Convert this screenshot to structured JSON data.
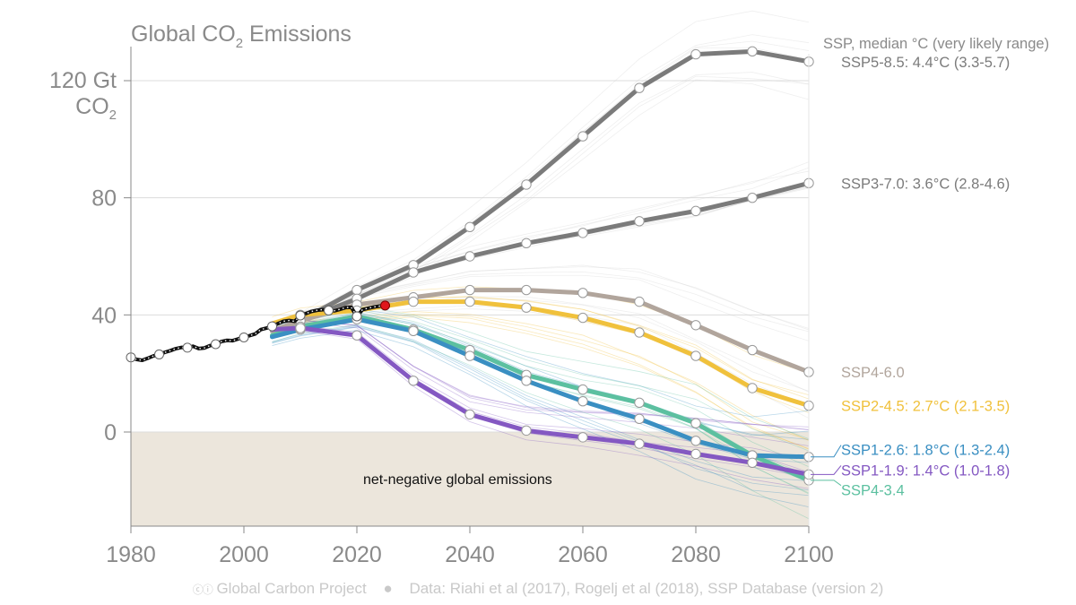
{
  "title": {
    "main": "Global CO",
    "sub": "2",
    "rest": " Emissions"
  },
  "y_unit": {
    "line1": "120 Gt",
    "line2_main": "CO",
    "line2_sub": "2"
  },
  "header_note": "SSP, median °C (very likely range)",
  "region_label": "net-negative global emissions",
  "footer": {
    "cc_icon": "cc-by-icon",
    "org": "Global Carbon Project",
    "separator": "●",
    "source": "Data: Riahi et al (2017), Rogelj et al (2018), SSP Database (version 2)"
  },
  "colors": {
    "gray_dark": "#7b7b7b",
    "taupe": "#b1a59c",
    "yellow": "#f0c13c",
    "teal": "#5cc0a0",
    "blue": "#3a8fc2",
    "purple": "#8458c2",
    "historical": "#111111",
    "latest": "#e0161b",
    "negative_region": "#ece6dc",
    "scenario_band": "#d2d2d2"
  },
  "chart_data": {
    "type": "line",
    "xlim": [
      1980,
      2100
    ],
    "ylim": [
      -16,
      122
    ],
    "x_ticks": [
      "1980",
      "2000",
      "2020",
      "2040",
      "2060",
      "2080",
      "2100"
    ],
    "y_ticks": [
      "0",
      "40",
      "80"
    ],
    "y_ticks_values": [
      0,
      40,
      80,
      120
    ],
    "grid": true,
    "historical": {
      "x": [
        1980,
        1981,
        1982,
        1983,
        1984,
        1985,
        1986,
        1987,
        1988,
        1989,
        1990,
        1991,
        1992,
        1993,
        1994,
        1995,
        1996,
        1997,
        1998,
        1999,
        2000,
        2001,
        2002,
        2003,
        2004,
        2005,
        2006,
        2007,
        2008,
        2009,
        2010,
        2011,
        2012,
        2013,
        2014,
        2015,
        2016,
        2017,
        2018,
        2019,
        2020,
        2021,
        2022,
        2023,
        2024,
        2025
      ],
      "y": [
        25.5,
        24.8,
        24.5,
        25.2,
        26.0,
        26.5,
        27.2,
        27.8,
        28.5,
        28.9,
        28.8,
        29.3,
        28.5,
        28.7,
        29.5,
        30.0,
        30.9,
        31.3,
        31.2,
        31.8,
        32.3,
        32.9,
        33.5,
        35.0,
        35.5,
        36.1,
        37.0,
        37.8,
        38.1,
        37.8,
        39.8,
        40.5,
        41.2,
        41.6,
        41.8,
        41.5,
        41.4,
        41.9,
        42.5,
        42.6,
        39.5,
        41.8,
        42.3,
        42.7,
        43.0,
        43.2
      ],
      "markers_x": [
        1980,
        1985,
        1990,
        1995,
        2000,
        2005,
        2010,
        2015,
        2020
      ],
      "latest": {
        "x": 2025,
        "y": 43.2
      }
    },
    "series": [
      {
        "name": "SSP5-8.5: 4.4°C (3.3-5.7)",
        "color": "#7b7b7b",
        "x": [
          2005,
          2010,
          2020,
          2030,
          2040,
          2050,
          2060,
          2070,
          2080,
          2090,
          2100
        ],
        "y": [
          34.5,
          38.0,
          48.5,
          57.0,
          70.0,
          84.5,
          101.0,
          117.5,
          129.0,
          130.0,
          126.5
        ]
      },
      {
        "name": "SSP3-7.0: 3.6°C (2.8-4.6)",
        "color": "#7b7b7b",
        "x": [
          2005,
          2010,
          2020,
          2030,
          2040,
          2050,
          2060,
          2070,
          2080,
          2090,
          2100
        ],
        "y": [
          34.5,
          38.0,
          45.5,
          54.5,
          60.0,
          64.5,
          68.0,
          72.0,
          75.5,
          80.0,
          85.0
        ]
      },
      {
        "name": "SSP4-6.0",
        "color": "#b1a59c",
        "x": [
          2005,
          2010,
          2020,
          2030,
          2040,
          2050,
          2060,
          2070,
          2080,
          2090,
          2100
        ],
        "y": [
          34.5,
          38.0,
          43.5,
          46.0,
          48.5,
          48.5,
          47.5,
          44.5,
          36.5,
          28.0,
          20.5
        ]
      },
      {
        "name": "SSP2-4.5: 2.7°C (2.1-3.5)",
        "color": "#f0c13c",
        "x": [
          2005,
          2010,
          2020,
          2030,
          2040,
          2050,
          2060,
          2070,
          2080,
          2090,
          2100
        ],
        "y": [
          37.0,
          40.0,
          41.5,
          44.5,
          44.5,
          42.5,
          39.0,
          34.0,
          26.0,
          15.0,
          9.0
        ]
      },
      {
        "name": "SSP1-2.6: 1.8°C (1.3-2.4)",
        "color": "#3a8fc2",
        "x": [
          2005,
          2010,
          2020,
          2030,
          2040,
          2050,
          2060,
          2070,
          2080,
          2090,
          2100
        ],
        "y": [
          32.5,
          35.0,
          38.5,
          34.5,
          26.0,
          17.5,
          10.5,
          4.5,
          -3.0,
          -8.0,
          -8.5
        ]
      },
      {
        "name": "SSP1-1.9: 1.4°C (1.0-1.8)",
        "color": "#8458c2",
        "x": [
          2005,
          2010,
          2020,
          2030,
          2040,
          2050,
          2060,
          2070,
          2080,
          2090,
          2100
        ],
        "y": [
          35.0,
          35.5,
          33.0,
          17.5,
          6.0,
          0.5,
          -1.8,
          -4.0,
          -7.5,
          -10.5,
          -14.5
        ]
      },
      {
        "name": "SSP4-3.4",
        "color": "#5cc0a0",
        "x": [
          2005,
          2010,
          2020,
          2030,
          2040,
          2050,
          2060,
          2070,
          2080,
          2090,
          2100
        ],
        "y": [
          33.0,
          36.0,
          39.5,
          35.0,
          28.0,
          19.5,
          14.5,
          10.0,
          3.0,
          -8.0,
          -16.5
        ]
      }
    ],
    "labels": [
      {
        "text": "SSP5-8.5: 4.4°C (3.3-5.7)",
        "color": "#7b7b7b",
        "y": 126.5
      },
      {
        "text": "SSP3-7.0: 3.6°C (2.8-4.6)",
        "color": "#7b7b7b",
        "y": 85.0
      },
      {
        "text": "SSP4-6.0",
        "color": "#b1a59c",
        "y": 20.5
      },
      {
        "text": "SSP2-4.5: 2.7°C (2.1-3.5)",
        "color": "#f0c13c",
        "y": 9.0
      },
      {
        "text": "SSP1-2.6: 1.8°C (1.3-2.4)",
        "color": "#3a8fc2",
        "y": -6.0
      },
      {
        "text": "SSP1-1.9: 1.4°C (1.0-1.8)",
        "color": "#8458c2",
        "y": -13.0
      },
      {
        "text": "SSP4-3.4",
        "color": "#5cc0a0",
        "y": -19.8
      }
    ]
  }
}
